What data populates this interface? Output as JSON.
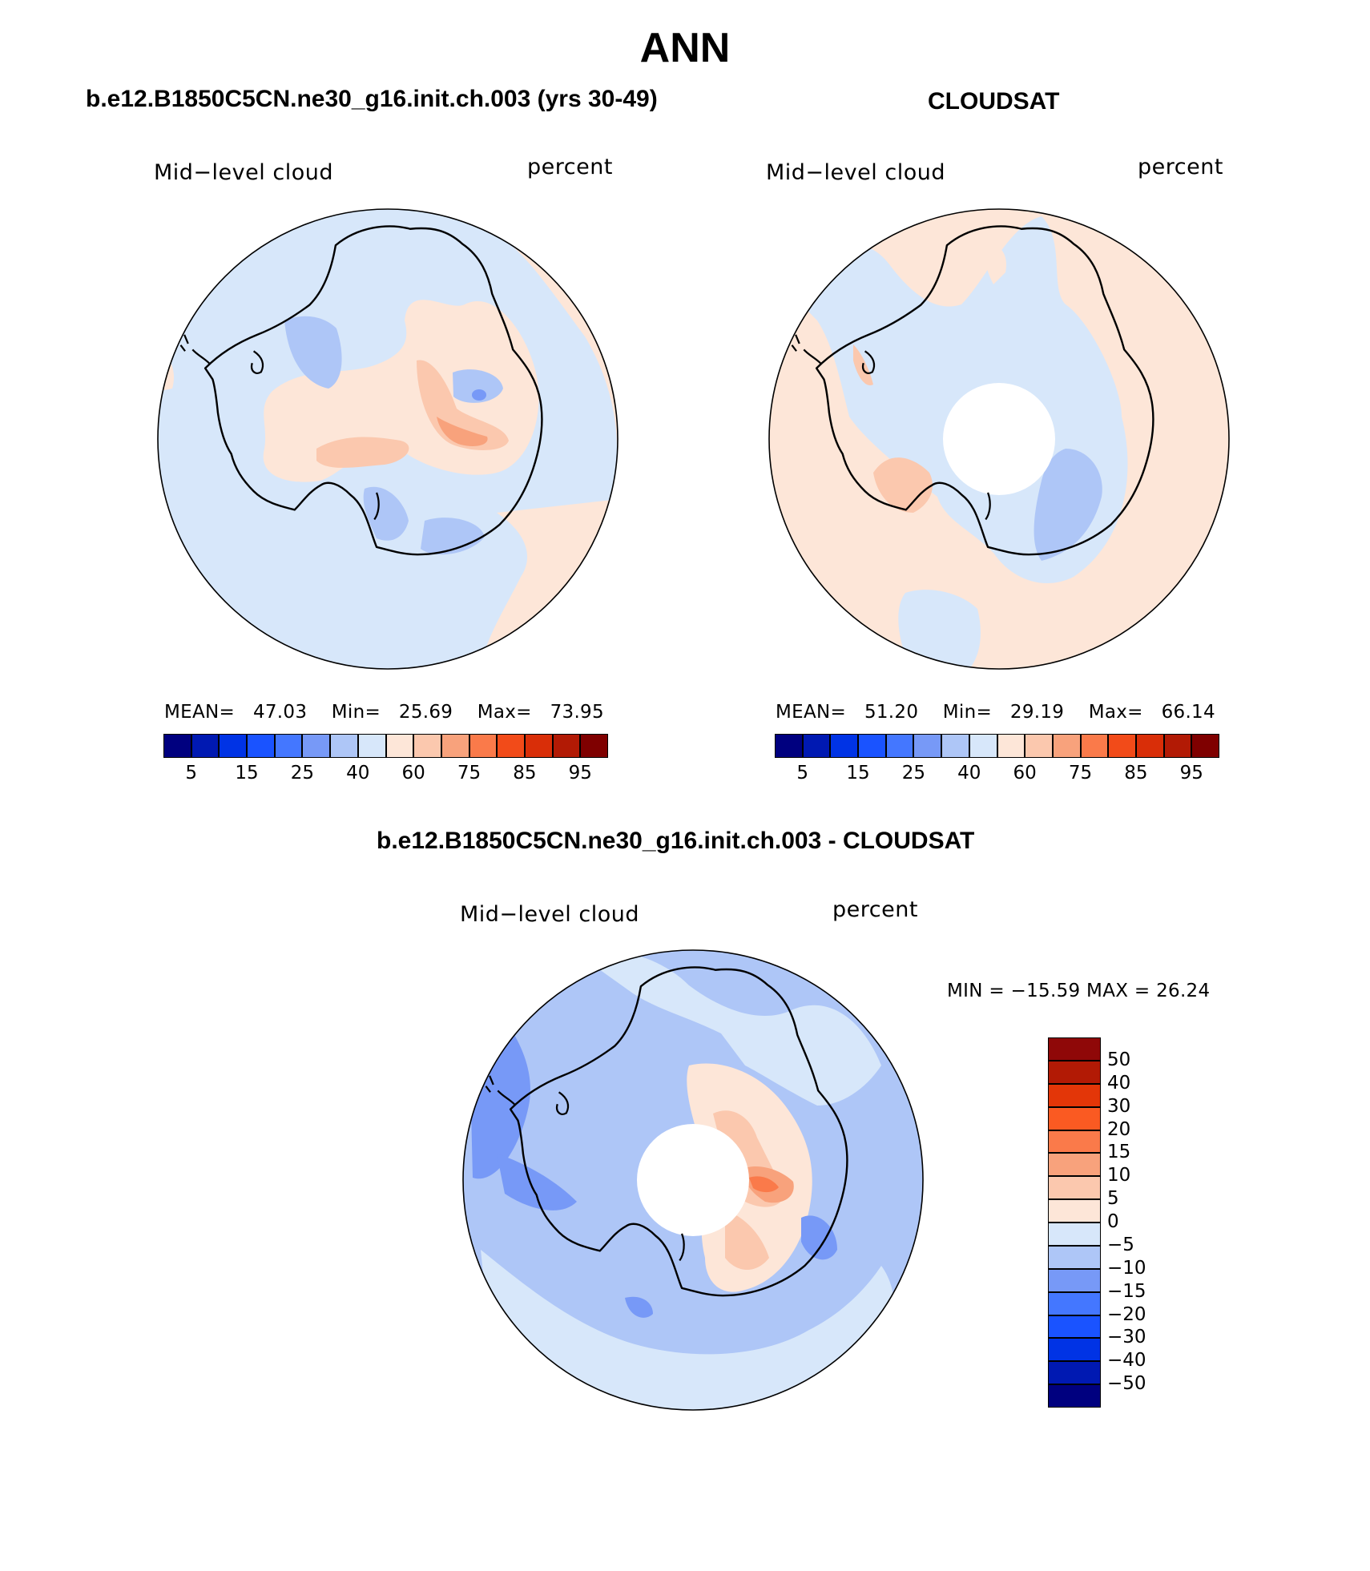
{
  "title": "ANN",
  "panels": [
    {
      "id": "model",
      "title": "b.e12.B1850C5CN.ne30_g16.init.ch.003 (yrs 30-49)",
      "left_label": "Mid−level cloud",
      "right_label": "percent",
      "stats": {
        "mean_label": "MEAN=",
        "mean": "47.03",
        "min_label": "Min=",
        "min": "25.69",
        "max_label": "Max=",
        "max": "73.95"
      }
    },
    {
      "id": "obs",
      "title": "CLOUDSAT",
      "left_label": "Mid−level cloud",
      "right_label": "percent",
      "stats": {
        "mean_label": "MEAN=",
        "mean": "51.20",
        "min_label": "Min=",
        "min": "29.19",
        "max_label": "Max=",
        "max": "66.14"
      }
    },
    {
      "id": "diff",
      "title": "b.e12.B1850C5CN.ne30_g16.init.ch.003 - CLOUDSAT",
      "left_label": "Mid−level cloud",
      "right_label": "percent",
      "stats_text": "MIN = −15.59 MAX =   26.24"
    }
  ],
  "colorbar_abs": {
    "colors": [
      "#00007f",
      "#0019b2",
      "#0033e5",
      "#1a53ff",
      "#4477ff",
      "#7799f7",
      "#aec6f7",
      "#d7e7fa",
      "#fde6d8",
      "#fbc8ae",
      "#f8a27c",
      "#fa7a4a",
      "#f24b19",
      "#d92e08",
      "#b21a05",
      "#7f0000"
    ],
    "tick_labels": [
      "5",
      "15",
      "25",
      "40",
      "60",
      "75",
      "85",
      "95"
    ]
  },
  "colorbar_diff": {
    "colors_top_to_bottom": [
      "#8f0808",
      "#b21a05",
      "#e33608",
      "#fa5a22",
      "#fa7a4a",
      "#f8a27c",
      "#fbc8ae",
      "#fde6d8",
      "#d7e7fa",
      "#aec6f7",
      "#7799f7",
      "#4477ff",
      "#1a53ff",
      "#0033e5",
      "#0019b2",
      "#00007f"
    ],
    "tick_labels": [
      "50",
      "40",
      "30",
      "20",
      "15",
      "10",
      "5",
      "0",
      "−5",
      "−10",
      "−15",
      "−20",
      "−30",
      "−40",
      "−50"
    ]
  },
  "map_colors": {
    "ocean_blue": "#d7e7fa",
    "light_orange": "#fde6d8",
    "pale_blue": "#aec6f7",
    "mid_blue": "#7799f7",
    "orange2": "#fbc8ae",
    "orange3": "#f8a27c",
    "orange4": "#fa7a4a",
    "missing": "#ffffff"
  }
}
